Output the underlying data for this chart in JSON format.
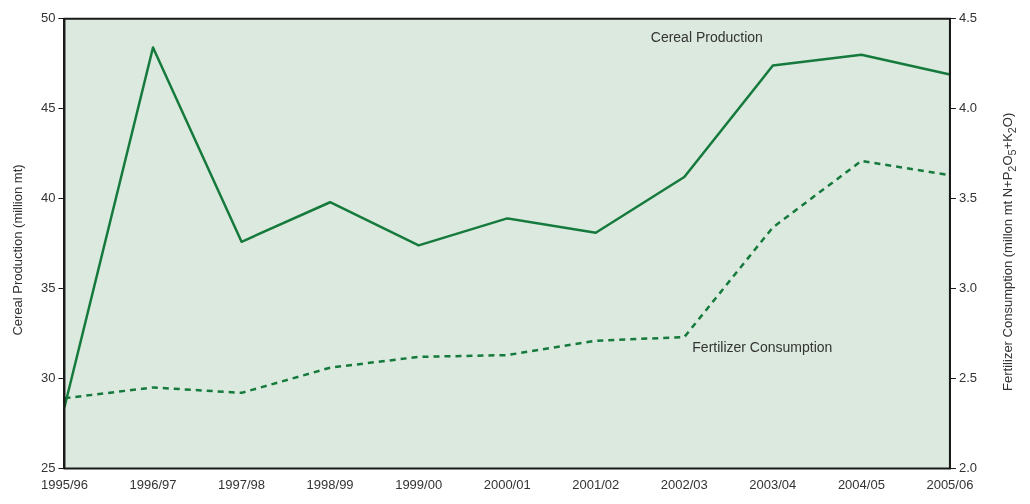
{
  "chart_data": {
    "type": "line",
    "categories": [
      "1995/96",
      "1996/97",
      "1997/98",
      "1998/99",
      "1999/00",
      "2000/01",
      "2001/02",
      "2002/03",
      "2003/04",
      "2004/05",
      "2005/06"
    ],
    "ylabel": "Cereal Production (million mt)",
    "y2label": "Fertilizer Consumption (millon mt N+P$_{2}$O$_{5}$+K$_{2}$O)",
    "ylim": [
      25,
      50
    ],
    "yticks": [
      25,
      30,
      35,
      40,
      45,
      50
    ],
    "y2lim": [
      2.0,
      4.5
    ],
    "y2ticks": [
      {
        "value": 2,
        "label": "2.0"
      },
      2.5,
      {
        "value": 3,
        "label": "3.0"
      },
      3.5,
      {
        "value": 4,
        "label": "4.0"
      },
      4.5
    ],
    "grid": false,
    "legend": false,
    "marker": "none",
    "series": [
      {
        "name": "Cereal Production",
        "color": "#157a3c",
        "line_style": "solid",
        "values": [
          28.4,
          48.4,
          37.6,
          39.8,
          37.4,
          38.9,
          38.1,
          41.2,
          47.4,
          48.0,
          46.9
        ]
      },
      {
        "name": "Fertilizer Consumption",
        "color": "#157a3c",
        "line_style": "dashed",
        "axis": "y2",
        "values": [
          2.39,
          2.45,
          2.42,
          2.56,
          2.62,
          2.63,
          2.71,
          2.73,
          3.34,
          3.71,
          3.63
        ]
      }
    ]
  }
}
